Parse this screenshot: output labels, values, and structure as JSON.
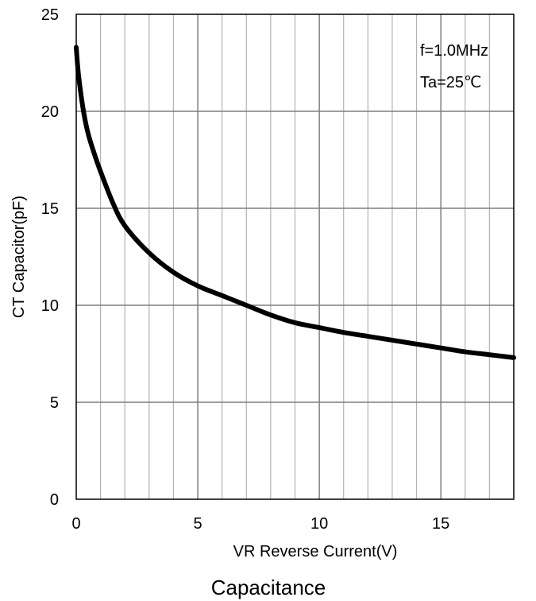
{
  "chart_data": {
    "type": "line",
    "title": "",
    "caption": "Capacitance",
    "xlabel": "VR Reverse Current(V)",
    "ylabel": "CT Capacitor(pF)",
    "xlim": [
      0,
      18
    ],
    "ylim": [
      0,
      25
    ],
    "x_ticks": [
      0,
      5,
      10,
      15
    ],
    "y_ticks": [
      0,
      5,
      10,
      15,
      20,
      25
    ],
    "x_minor_step": 1,
    "y_major_step": 5,
    "grid": true,
    "annotations": [
      "f=1.0MHz",
      "Ta=25℃"
    ],
    "line_color": "#000000",
    "grid_major_color": "#7f7f7f",
    "grid_minor_color": "#b3b3b3",
    "series": [
      {
        "x": [
          0.0,
          0.1,
          0.3,
          0.5,
          0.8,
          1.0,
          1.5,
          2.0,
          3.0,
          4.0,
          5.0,
          6.0,
          7.0,
          8.0,
          9.0,
          10.0,
          11.0,
          12.0,
          13.0,
          14.0,
          15.0,
          16.0,
          17.0,
          18.0
        ],
        "y": [
          23.3,
          21.8,
          20.0,
          18.8,
          17.6,
          16.9,
          15.3,
          14.1,
          12.7,
          11.7,
          11.0,
          10.5,
          10.0,
          9.5,
          9.1,
          8.85,
          8.6,
          8.4,
          8.2,
          8.0,
          7.8,
          7.6,
          7.45,
          7.3
        ]
      }
    ]
  }
}
